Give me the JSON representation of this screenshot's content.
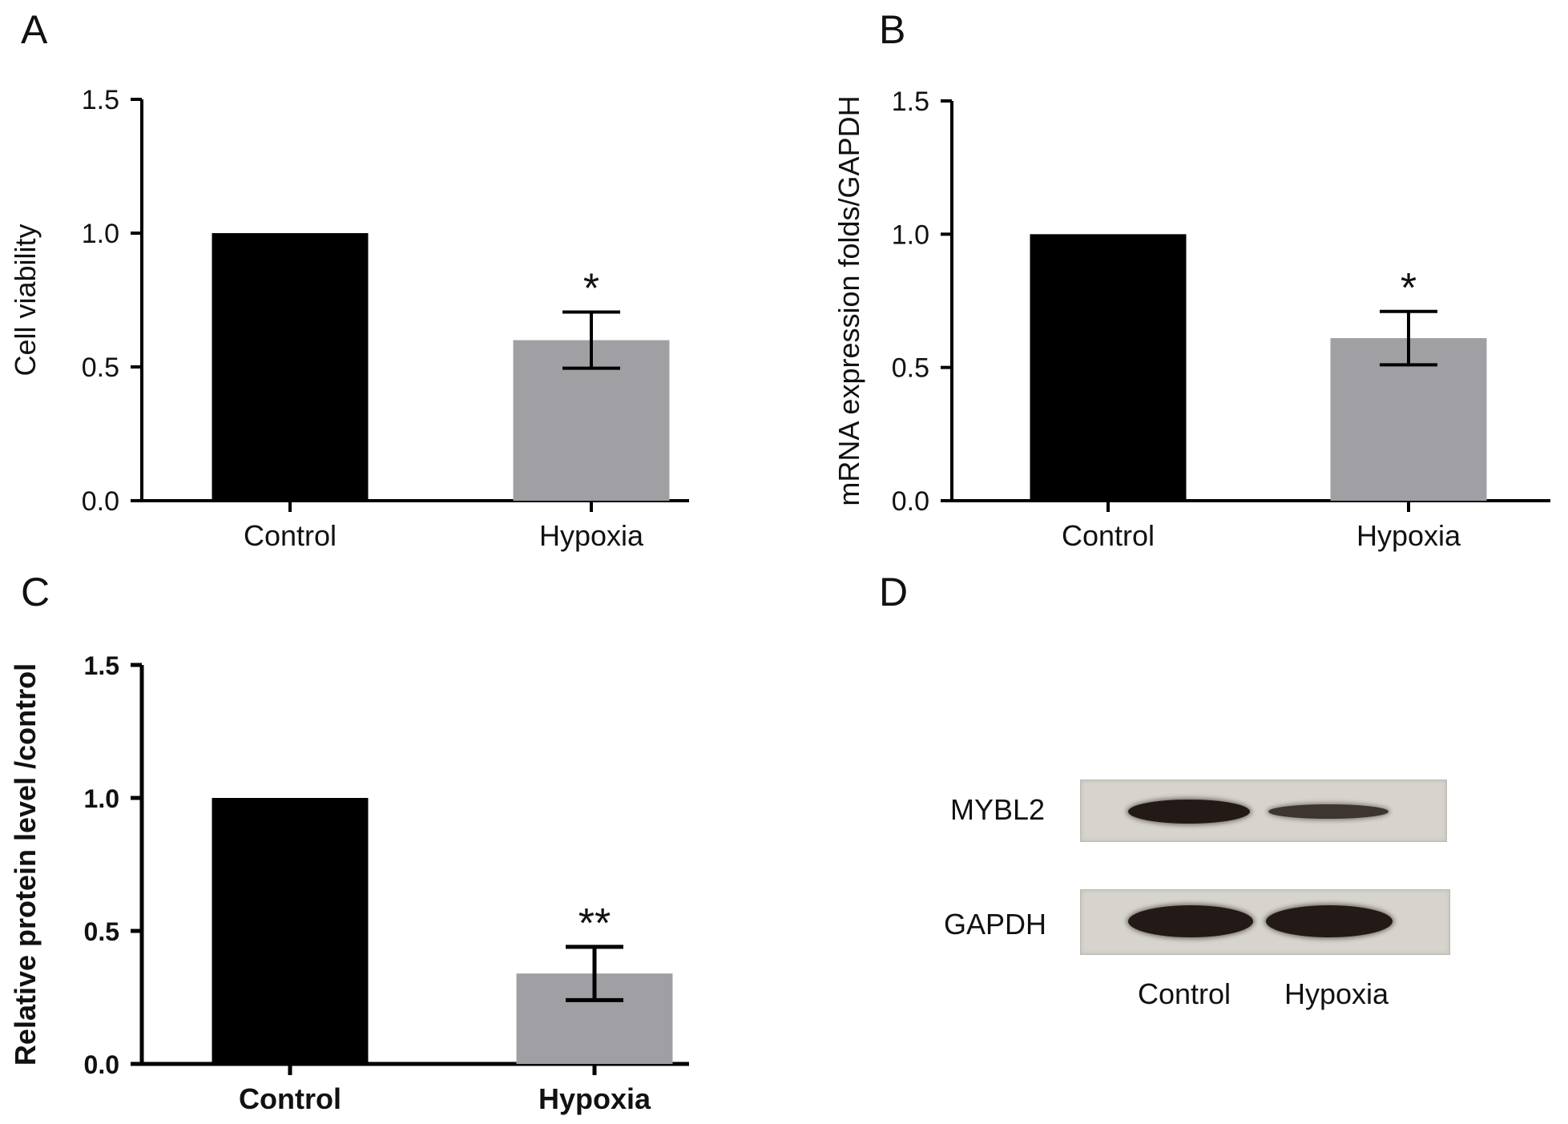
{
  "chart_data": [
    {
      "panel": "A",
      "type": "bar",
      "categories": [
        "Control",
        "Hypoxia"
      ],
      "values": [
        1.0,
        0.6
      ],
      "errors": [
        0.0,
        0.105
      ],
      "colors": [
        "#000000",
        "#a0a0a4"
      ],
      "significance": [
        "",
        "*"
      ],
      "ylabel": "Cell viability",
      "ylim": [
        0,
        1.5
      ],
      "yticks": [
        "0.0",
        "0.5",
        "1.0",
        "1.5"
      ],
      "bold": false
    },
    {
      "panel": "B",
      "type": "bar",
      "categories": [
        "Control",
        "Hypoxia"
      ],
      "values": [
        1.0,
        0.61
      ],
      "errors": [
        0.0,
        0.1
      ],
      "colors": [
        "#000000",
        "#a0a0a4"
      ],
      "significance": [
        "",
        "*"
      ],
      "ylabel": "mRNA expression folds/GAPDH",
      "ylim": [
        0,
        1.5
      ],
      "yticks": [
        "0.0",
        "0.5",
        "1.0",
        "1.5"
      ],
      "bold": false
    },
    {
      "panel": "C",
      "type": "bar",
      "categories": [
        "Control",
        "Hypoxia"
      ],
      "values": [
        1.0,
        0.34
      ],
      "errors": [
        0.0,
        0.1
      ],
      "colors": [
        "#000000",
        "#a0a0a4"
      ],
      "significance": [
        "",
        "**"
      ],
      "ylabel": "Relative protein level /control",
      "ylim": [
        0,
        1.5
      ],
      "yticks": [
        "0.0",
        "0.5",
        "1.0",
        "1.5"
      ],
      "bold": true
    }
  ],
  "blot": {
    "panel": "D",
    "proteins": [
      "MYBL2",
      "GAPDH"
    ],
    "lanes": [
      "Control",
      "Hypoxia"
    ],
    "band_intensity": {
      "MYBL2": [
        1.0,
        0.45
      ],
      "GAPDH": [
        1.0,
        1.0
      ]
    }
  }
}
